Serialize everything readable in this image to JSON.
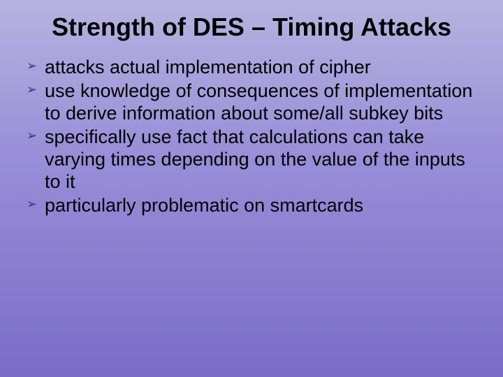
{
  "slide": {
    "background_gradient": [
      "#b8b2e0",
      "#9a8fd8",
      "#8a7dd0",
      "#7a6cc8"
    ],
    "title": {
      "text": "Strength of DES – Timing Attacks",
      "font_size": 36,
      "font_weight": "bold",
      "color": "#000000",
      "align": "center"
    },
    "bullet_marker": {
      "glyph": "➢",
      "color": "#3a2f7a",
      "size": 18
    },
    "bullets": [
      "attacks actual implementation of cipher",
      "use knowledge of consequences of implementation to derive information about some/all subkey bits",
      "specifically use fact that calculations can take varying times depending on the value of the inputs to it",
      "particularly problematic on smartcards"
    ],
    "body_font_size": 27,
    "body_color": "#000000"
  }
}
